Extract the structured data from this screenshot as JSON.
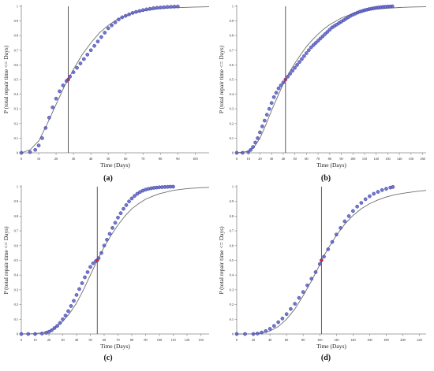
{
  "style": {
    "observed_fill": "#5a5fc4",
    "observed_stroke": "#3c3fa0",
    "fitted_color": "#6e6e6e",
    "median_line_color": "#333333",
    "median_marker_color": "#d62a2a",
    "axis_color": "#888888",
    "text_color": "#222222"
  },
  "chart_data": [
    {
      "panel": "a",
      "caption": "(a)",
      "type": "scatter",
      "xlabel": "Time (Days)",
      "ylabel": "P (total repair time <= Days)",
      "xlim": [
        0,
        108
      ],
      "ylim": [
        0,
        1
      ],
      "xticks": [
        0,
        10,
        20,
        30,
        40,
        50,
        60,
        70,
        80,
        90,
        100
      ],
      "yticks": [
        0,
        0.1,
        0.2,
        0.3,
        0.4,
        0.5,
        0.6,
        0.7,
        0.8,
        0.9,
        1
      ],
      "ytick_labels": [
        "0",
        "0.1",
        "0.2",
        "0.3",
        "0.4",
        "0.5",
        "0.6",
        "0.7",
        "0.8",
        "0.9",
        "1"
      ],
      "median_line": 27,
      "grid": false,
      "series": [
        {
          "kind": "observed",
          "x": [
            0,
            5,
            8,
            10,
            12,
            14,
            16,
            18,
            20,
            22,
            24,
            26,
            27,
            28,
            30,
            32,
            34,
            36,
            38,
            40,
            42,
            44,
            46,
            48,
            50,
            52,
            54,
            56,
            58,
            60,
            62,
            64,
            66,
            68,
            70,
            72,
            74,
            76,
            78,
            80,
            82,
            84,
            86,
            88,
            90
          ],
          "y": [
            0,
            0.005,
            0.02,
            0.05,
            0.1,
            0.17,
            0.24,
            0.31,
            0.37,
            0.42,
            0.46,
            0.49,
            0.5,
            0.52,
            0.55,
            0.58,
            0.61,
            0.64,
            0.67,
            0.7,
            0.73,
            0.76,
            0.79,
            0.82,
            0.85,
            0.87,
            0.89,
            0.91,
            0.925,
            0.935,
            0.945,
            0.955,
            0.962,
            0.968,
            0.974,
            0.979,
            0.983,
            0.987,
            0.99,
            0.992,
            0.994,
            0.996,
            0.997,
            0.998,
            0.999
          ]
        },
        {
          "kind": "fitted",
          "x": [
            0,
            5,
            10,
            15,
            20,
            25,
            27,
            30,
            35,
            40,
            45,
            50,
            55,
            60,
            65,
            70,
            75,
            80,
            85,
            90,
            95,
            100,
            108
          ],
          "y": [
            0.0,
            0.02,
            0.08,
            0.2,
            0.33,
            0.46,
            0.5,
            0.57,
            0.67,
            0.75,
            0.82,
            0.87,
            0.91,
            0.935,
            0.955,
            0.968,
            0.977,
            0.984,
            0.988,
            0.991,
            0.993,
            0.995,
            0.997
          ]
        }
      ]
    },
    {
      "panel": "b",
      "caption": "(b)",
      "type": "scatter",
      "xlabel": "Time (Days)",
      "ylabel": "P (total repair time <= Days)",
      "xlim": [
        0,
        163
      ],
      "ylim": [
        0,
        1
      ],
      "xticks": [
        0,
        10,
        20,
        30,
        40,
        50,
        60,
        70,
        80,
        90,
        100,
        110,
        120,
        130,
        140,
        150,
        160
      ],
      "yticks": [
        0,
        0.1,
        0.2,
        0.3,
        0.4,
        0.5,
        0.6,
        0.7,
        0.8,
        0.9,
        1
      ],
      "ytick_labels": [
        "0",
        "0.1",
        "0.2",
        "0.3",
        "0.4",
        "0.5",
        "0.6",
        "0.7",
        "0.8",
        "0.9",
        "1"
      ],
      "median_line": 42,
      "grid": false,
      "series": [
        {
          "kind": "observed",
          "x": [
            0,
            5,
            10,
            12,
            14,
            16,
            18,
            20,
            22,
            24,
            26,
            28,
            30,
            32,
            34,
            36,
            38,
            40,
            42,
            44,
            46,
            48,
            50,
            52,
            54,
            56,
            58,
            60,
            62,
            64,
            66,
            68,
            70,
            72,
            74,
            76,
            78,
            80,
            82,
            84,
            86,
            88,
            90,
            92,
            94,
            96,
            98,
            100,
            102,
            104,
            106,
            108,
            110,
            112,
            114,
            116,
            118,
            120,
            122,
            124,
            126,
            128,
            130,
            132,
            134
          ],
          "y": [
            0,
            0,
            0.005,
            0.02,
            0.04,
            0.07,
            0.1,
            0.14,
            0.18,
            0.22,
            0.26,
            0.3,
            0.34,
            0.38,
            0.41,
            0.44,
            0.46,
            0.48,
            0.5,
            0.52,
            0.54,
            0.56,
            0.58,
            0.6,
            0.62,
            0.64,
            0.66,
            0.68,
            0.7,
            0.72,
            0.735,
            0.75,
            0.765,
            0.78,
            0.795,
            0.81,
            0.825,
            0.84,
            0.855,
            0.865,
            0.875,
            0.885,
            0.895,
            0.905,
            0.915,
            0.925,
            0.935,
            0.943,
            0.95,
            0.957,
            0.963,
            0.968,
            0.973,
            0.977,
            0.981,
            0.984,
            0.987,
            0.99,
            0.992,
            0.994,
            0.996,
            0.997,
            0.998,
            0.999,
            1.0
          ]
        },
        {
          "kind": "fitted",
          "x": [
            0,
            10,
            15,
            20,
            25,
            30,
            35,
            40,
            42,
            45,
            50,
            55,
            60,
            65,
            70,
            75,
            80,
            90,
            100,
            110,
            120,
            130,
            140,
            150,
            163
          ],
          "y": [
            0.0,
            0.01,
            0.04,
            0.1,
            0.19,
            0.29,
            0.38,
            0.47,
            0.5,
            0.545,
            0.61,
            0.67,
            0.725,
            0.77,
            0.81,
            0.845,
            0.875,
            0.92,
            0.95,
            0.968,
            0.98,
            0.987,
            0.992,
            0.995,
            0.997
          ]
        }
      ]
    },
    {
      "panel": "c",
      "caption": "(c)",
      "type": "scatter",
      "xlabel": "Time (Days)",
      "ylabel": "P (total repair time <= Days)",
      "xlim": [
        0,
        136
      ],
      "ylim": [
        0,
        1
      ],
      "xticks": [
        0,
        10,
        20,
        30,
        40,
        50,
        60,
        70,
        80,
        90,
        100,
        110,
        120,
        130
      ],
      "yticks": [
        0,
        0.1,
        0.2,
        0.3,
        0.4,
        0.5,
        0.6,
        0.7,
        0.8,
        0.9,
        1
      ],
      "ytick_labels": [
        "0",
        "0.1",
        "0.2",
        "0.3",
        "0.4",
        "0.5",
        "0.6",
        "0.7",
        "0.8",
        "0.9",
        "1"
      ],
      "median_line": 55,
      "grid": false,
      "series": [
        {
          "kind": "observed",
          "x": [
            0,
            5,
            10,
            15,
            18,
            20,
            22,
            24,
            26,
            28,
            30,
            32,
            34,
            36,
            38,
            40,
            42,
            44,
            46,
            48,
            50,
            52,
            54,
            55,
            56,
            58,
            60,
            62,
            64,
            66,
            68,
            70,
            72,
            74,
            76,
            78,
            80,
            82,
            84,
            86,
            88,
            90,
            92,
            94,
            96,
            98,
            100,
            102,
            104,
            106,
            108,
            110
          ],
          "y": [
            0,
            0,
            0,
            0.003,
            0.008,
            0.015,
            0.025,
            0.04,
            0.055,
            0.075,
            0.1,
            0.125,
            0.155,
            0.19,
            0.225,
            0.265,
            0.305,
            0.345,
            0.385,
            0.42,
            0.455,
            0.48,
            0.495,
            0.5,
            0.515,
            0.55,
            0.6,
            0.64,
            0.68,
            0.72,
            0.755,
            0.79,
            0.82,
            0.85,
            0.875,
            0.9,
            0.92,
            0.937,
            0.952,
            0.964,
            0.973,
            0.98,
            0.985,
            0.989,
            0.992,
            0.994,
            0.996,
            0.997,
            0.998,
            0.999,
            1.0,
            1.0
          ]
        },
        {
          "kind": "fitted",
          "x": [
            0,
            10,
            15,
            20,
            25,
            30,
            35,
            40,
            45,
            50,
            55,
            60,
            65,
            70,
            75,
            80,
            85,
            90,
            95,
            100,
            110,
            120,
            130,
            136
          ],
          "y": [
            0.0,
            0.002,
            0.008,
            0.02,
            0.045,
            0.085,
            0.14,
            0.21,
            0.3,
            0.4,
            0.5,
            0.59,
            0.67,
            0.74,
            0.8,
            0.85,
            0.885,
            0.915,
            0.935,
            0.952,
            0.975,
            0.987,
            0.993,
            0.995
          ]
        }
      ]
    },
    {
      "panel": "d",
      "caption": "(d)",
      "type": "scatter",
      "xlabel": "Time (Days)",
      "ylabel": "P (total repair time <= Days)",
      "xlim": [
        0,
        228
      ],
      "ylim": [
        0,
        1
      ],
      "xticks": [
        0,
        20,
        40,
        60,
        80,
        100,
        120,
        140,
        160,
        180,
        200,
        220
      ],
      "yticks": [
        0,
        0.1,
        0.2,
        0.3,
        0.4,
        0.5,
        0.6,
        0.7,
        0.8,
        0.9,
        1
      ],
      "ytick_labels": [
        "0",
        "0.1",
        "0.2",
        "0.3",
        "0.4",
        "0.5",
        "0.6",
        "0.7",
        "0.8",
        "0.9",
        "1"
      ],
      "median_line": 102,
      "grid": false,
      "series": [
        {
          "kind": "observed",
          "x": [
            0,
            10,
            20,
            25,
            30,
            35,
            40,
            45,
            50,
            55,
            60,
            65,
            70,
            75,
            80,
            85,
            90,
            95,
            100,
            102,
            105,
            110,
            115,
            120,
            125,
            130,
            135,
            140,
            145,
            150,
            155,
            160,
            165,
            170,
            175,
            180,
            185,
            188
          ],
          "y": [
            0,
            0,
            0,
            0.003,
            0.01,
            0.02,
            0.035,
            0.055,
            0.08,
            0.105,
            0.135,
            0.17,
            0.205,
            0.245,
            0.285,
            0.33,
            0.375,
            0.42,
            0.475,
            0.5,
            0.525,
            0.575,
            0.625,
            0.675,
            0.72,
            0.765,
            0.8,
            0.835,
            0.865,
            0.89,
            0.915,
            0.935,
            0.952,
            0.965,
            0.977,
            0.986,
            0.994,
            0.998
          ]
        },
        {
          "kind": "fitted",
          "x": [
            0,
            20,
            30,
            40,
            50,
            60,
            70,
            80,
            90,
            100,
            102,
            110,
            120,
            130,
            140,
            150,
            160,
            170,
            180,
            190,
            200,
            210,
            220,
            228
          ],
          "y": [
            0.0,
            0.001,
            0.006,
            0.02,
            0.05,
            0.1,
            0.17,
            0.26,
            0.36,
            0.47,
            0.5,
            0.58,
            0.67,
            0.745,
            0.805,
            0.85,
            0.885,
            0.91,
            0.93,
            0.945,
            0.955,
            0.963,
            0.97,
            0.975
          ]
        }
      ]
    }
  ]
}
